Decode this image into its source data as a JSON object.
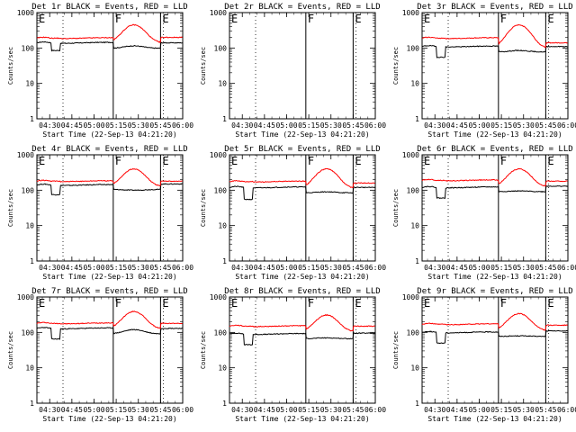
{
  "chart_data": {
    "type": "line",
    "layout": "3x3 grid of log-scale count-rate panels",
    "x_ticks": [
      "04:30",
      "04:45",
      "05:00",
      "05:15",
      "05:30",
      "05:45",
      "06:00"
    ],
    "x_range": [
      "04:21:20",
      "06:00"
    ],
    "xlabel": "Start Time (22-Sep-13 04:21:20)",
    "ylabel": "Counts/sec",
    "y_scale": "log",
    "ylim": [
      1,
      1000
    ],
    "y_ticks": [
      "1",
      "10",
      "100",
      "1000"
    ],
    "series_colors": {
      "events": "#000000",
      "lld": "#ff0000"
    },
    "solid_markers": [
      "05:13",
      "05:45"
    ],
    "dotted_markers": [
      "04:39",
      "05:47"
    ],
    "section_labels": [
      {
        "text": "E",
        "at": "04:21:20"
      },
      {
        "text": "F",
        "at": "05:13"
      },
      {
        "text": "E",
        "at": "05:45"
      }
    ],
    "panels": [
      {
        "title": "Det 1r BLACK = Events, RED = LLD",
        "has_data": true,
        "events": {
          "base": 140,
          "dip": 85,
          "peak": 115,
          "end": 140
        },
        "lld": {
          "base": 190,
          "dip": 190,
          "peak": 450,
          "end": 200
        }
      },
      {
        "title": "Det 2r BLACK = Events, RED = LLD",
        "has_data": false
      },
      {
        "title": "Det 3r BLACK = Events, RED = LLD",
        "has_data": true,
        "events": {
          "base": 110,
          "dip": 55,
          "peak": 85,
          "end": 110
        },
        "lld": {
          "base": 190,
          "dip": 190,
          "peak": 450,
          "end": 140
        }
      },
      {
        "title": "Det 4r BLACK = Events, RED = LLD",
        "has_data": true,
        "events": {
          "base": 140,
          "dip": 75,
          "peak": 100,
          "end": 150
        },
        "lld": {
          "base": 180,
          "dip": 180,
          "peak": 400,
          "end": 180
        }
      },
      {
        "title": "Det 5r BLACK = Events, RED = LLD",
        "has_data": true,
        "events": {
          "base": 120,
          "dip": 55,
          "peak": 90,
          "end": 120
        },
        "lld": {
          "base": 175,
          "dip": 175,
          "peak": 400,
          "end": 160
        }
      },
      {
        "title": "Det 6r BLACK = Events, RED = LLD",
        "has_data": true,
        "events": {
          "base": 120,
          "dip": 60,
          "peak": 95,
          "end": 130
        },
        "lld": {
          "base": 190,
          "dip": 190,
          "peak": 400,
          "end": 180
        }
      },
      {
        "title": "Det 7r BLACK = Events, RED = LLD",
        "has_data": true,
        "events": {
          "base": 130,
          "dip": 65,
          "peak": 120,
          "end": 130
        },
        "lld": {
          "base": 180,
          "dip": 180,
          "peak": 390,
          "end": 180
        }
      },
      {
        "title": "Det 8r BLACK = Events, RED = LLD",
        "has_data": true,
        "events": {
          "base": 90,
          "dip": 45,
          "peak": 70,
          "end": 95
        },
        "lld": {
          "base": 150,
          "dip": 150,
          "peak": 310,
          "end": 150
        }
      },
      {
        "title": "Det 9r BLACK = Events, RED = LLD",
        "has_data": true,
        "events": {
          "base": 100,
          "dip": 50,
          "peak": 80,
          "end": 110
        },
        "lld": {
          "base": 170,
          "dip": 170,
          "peak": 340,
          "end": 160
        }
      }
    ]
  }
}
